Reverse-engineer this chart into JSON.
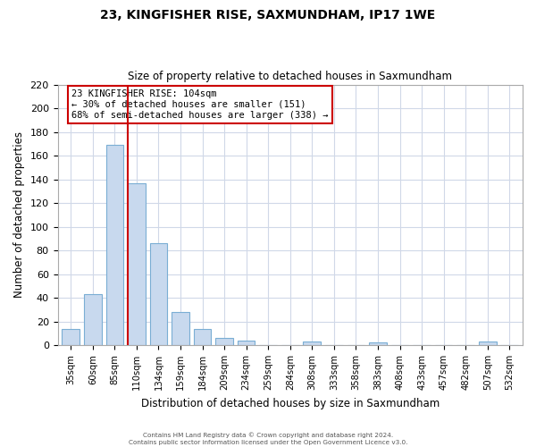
{
  "title": "23, KINGFISHER RISE, SAXMUNDHAM, IP17 1WE",
  "subtitle": "Size of property relative to detached houses in Saxmundham",
  "xlabel": "Distribution of detached houses by size in Saxmundham",
  "ylabel": "Number of detached properties",
  "bin_labels": [
    "35sqm",
    "60sqm",
    "85sqm",
    "110sqm",
    "134sqm",
    "159sqm",
    "184sqm",
    "209sqm",
    "234sqm",
    "259sqm",
    "284sqm",
    "308sqm",
    "333sqm",
    "358sqm",
    "383sqm",
    "408sqm",
    "433sqm",
    "457sqm",
    "482sqm",
    "507sqm",
    "532sqm"
  ],
  "bar_heights": [
    14,
    43,
    169,
    137,
    86,
    28,
    14,
    6,
    4,
    0,
    0,
    3,
    0,
    0,
    2,
    0,
    0,
    0,
    0,
    3,
    0
  ],
  "bar_color": "#c8d9ee",
  "bar_edge_color": "#7aaed4",
  "vline_x_index": 3,
  "vline_color": "#cc0000",
  "ylim": [
    0,
    220
  ],
  "yticks": [
    0,
    20,
    40,
    60,
    80,
    100,
    120,
    140,
    160,
    180,
    200,
    220
  ],
  "annotation_line1": "23 KINGFISHER RISE: 104sqm",
  "annotation_line2": "← 30% of detached houses are smaller (151)",
  "annotation_line3": "68% of semi-detached houses are larger (338) →",
  "footer_line1": "Contains HM Land Registry data © Crown copyright and database right 2024.",
  "footer_line2": "Contains public sector information licensed under the Open Government Licence v3.0."
}
